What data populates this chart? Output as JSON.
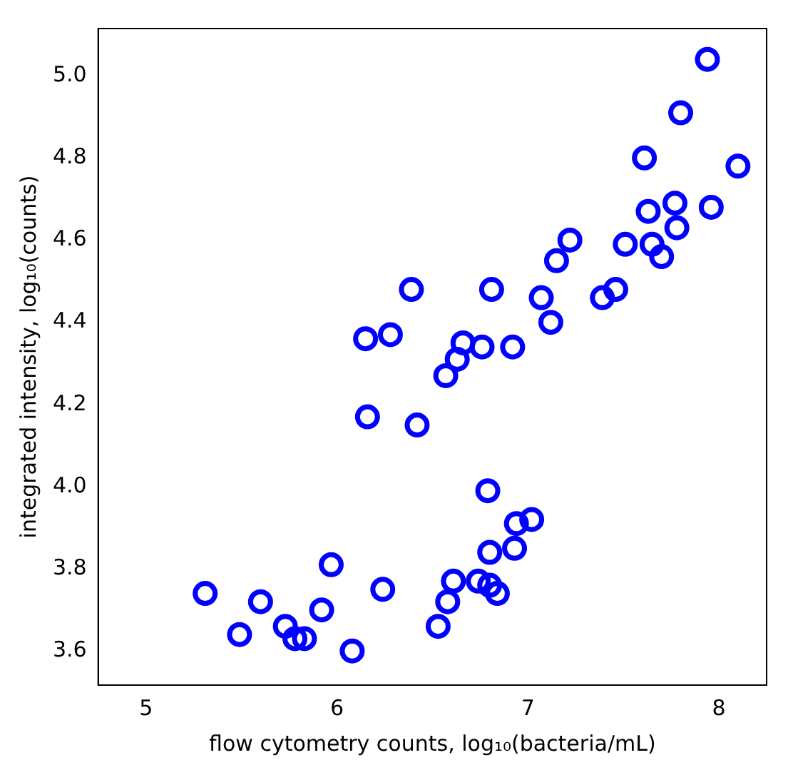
{
  "chart_data": {
    "type": "scatter",
    "xlabel": "flow cytometry counts, log₁₀(bacteria/mL)",
    "ylabel": "integrated intensity, log₁₀(counts)",
    "series": [
      {
        "color": "#0000ff",
        "x": [
          7.94,
          7.8,
          8.1,
          7.61,
          7.77,
          7.63,
          7.96,
          7.65,
          7.78,
          7.51,
          7.22,
          7.15,
          7.7,
          7.46,
          7.39,
          7.07,
          7.12,
          6.81,
          6.39,
          6.28,
          6.15,
          6.66,
          6.76,
          6.92,
          6.63,
          6.57,
          6.16,
          6.42,
          6.79,
          7.02,
          6.94,
          6.8,
          6.93,
          6.61,
          6.74,
          6.84,
          6.8,
          6.58,
          6.53,
          5.97,
          6.24,
          5.31,
          5.6,
          5.92,
          5.73,
          5.83,
          5.78,
          5.49,
          6.08
        ],
        "values": [
          5.04,
          4.91,
          4.78,
          4.8,
          4.69,
          4.67,
          4.68,
          4.59,
          4.63,
          4.59,
          4.6,
          4.55,
          4.56,
          4.48,
          4.46,
          4.46,
          4.4,
          4.48,
          4.48,
          4.37,
          4.36,
          4.35,
          4.34,
          4.34,
          4.31,
          4.27,
          4.17,
          4.15,
          3.99,
          3.92,
          3.91,
          3.84,
          3.85,
          3.77,
          3.77,
          3.74,
          3.76,
          3.72,
          3.66,
          3.81,
          3.75,
          3.74,
          3.72,
          3.7,
          3.66,
          3.63,
          3.63,
          3.64,
          3.6
        ]
      }
    ],
    "xlim": [
      4.75,
      8.25
    ],
    "xticks": [
      5,
      6,
      7,
      8
    ],
    "ylim": [
      3.517,
      5.115
    ],
    "yticks": [
      {
        "value": 3.6,
        "label": "3.6"
      },
      {
        "value": 3.8,
        "label": "3.8"
      },
      {
        "value": 4.0,
        "label": "4.0"
      },
      {
        "value": 4.2,
        "label": "4.2"
      },
      {
        "value": 4.4,
        "label": "4.4"
      },
      {
        "value": 4.6,
        "label": "4.6"
      },
      {
        "value": 4.8,
        "label": "4.8"
      },
      {
        "value": 5.0,
        "label": "5.0"
      }
    ],
    "marker": "circle",
    "grid": false,
    "legend": false
  }
}
